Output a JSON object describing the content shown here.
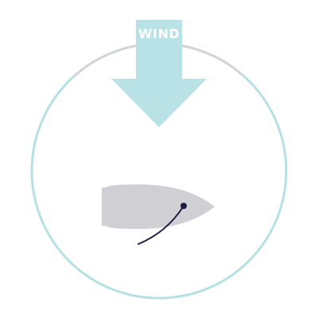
{
  "diagram": {
    "wind_label": "WIND",
    "wind_direction": "down",
    "colors": {
      "circle_teal": "#b6e0e3",
      "circle_arc_gray": "#d3d3d6",
      "arrow": "#b8e2e5",
      "boat_hull": "#cfcfd4",
      "sail_line": "#1a1f3f",
      "label_text": "#ffffff"
    }
  }
}
